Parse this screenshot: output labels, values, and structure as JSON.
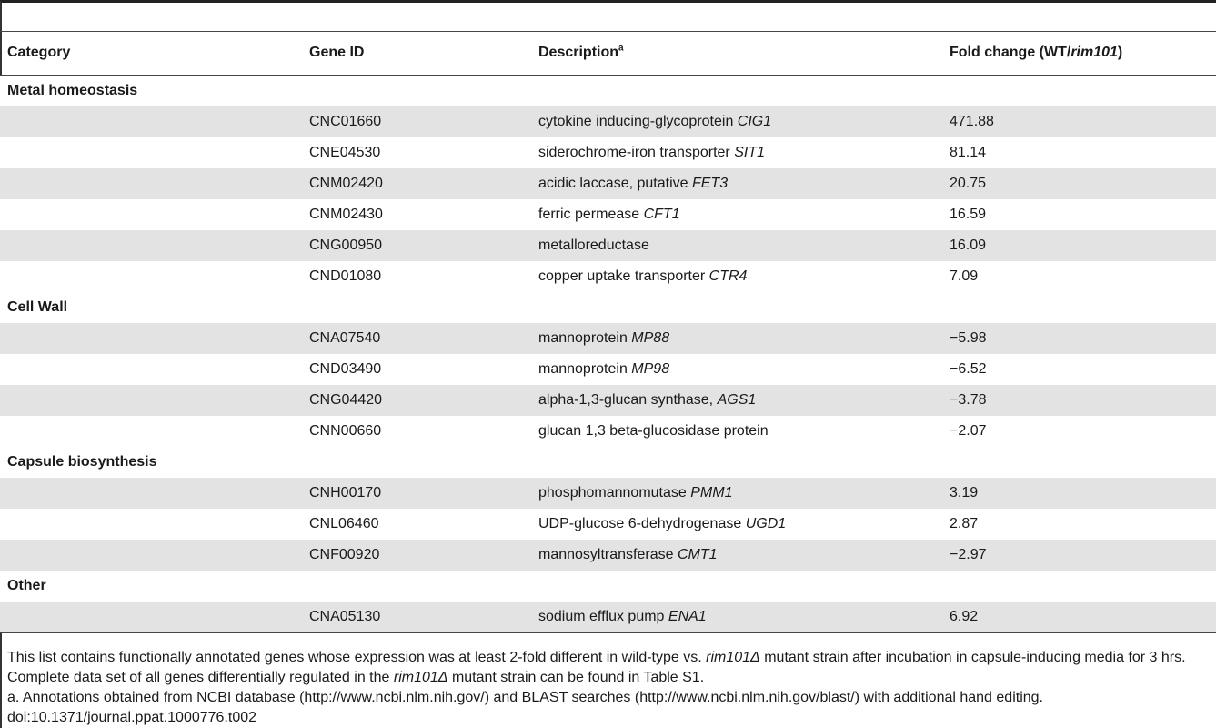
{
  "headers": {
    "category": "Category",
    "gene_id": "Gene ID",
    "description": "Description",
    "description_sup": "a",
    "fold_pre": "Fold change (WT/",
    "fold_italic": "rim101",
    "fold_post": ")"
  },
  "groups": [
    {
      "category": "Metal homeostasis",
      "rows": [
        {
          "gene": "CNC01660",
          "desc": "cytokine inducing-glycoprotein ",
          "desc_italic": "CIG1",
          "fold": "471.88"
        },
        {
          "gene": "CNE04530",
          "desc": "siderochrome-iron transporter ",
          "desc_italic": "SIT1",
          "fold": "81.14"
        },
        {
          "gene": "CNM02420",
          "desc": "acidic laccase, putative ",
          "desc_italic": "FET3",
          "fold": "20.75"
        },
        {
          "gene": "CNM02430",
          "desc": "ferric permease ",
          "desc_italic": "CFT1",
          "fold": "16.59"
        },
        {
          "gene": "CNG00950",
          "desc": "metalloreductase",
          "desc_italic": "",
          "fold": "16.09"
        },
        {
          "gene": "CND01080",
          "desc": "copper uptake transporter ",
          "desc_italic": "CTR4",
          "fold": "7.09"
        }
      ]
    },
    {
      "category": "Cell Wall",
      "rows": [
        {
          "gene": "CNA07540",
          "desc": "mannoprotein ",
          "desc_italic": "MP88",
          "fold": "−5.98"
        },
        {
          "gene": "CND03490",
          "desc": "mannoprotein ",
          "desc_italic": "MP98",
          "fold": "−6.52"
        },
        {
          "gene": "CNG04420",
          "desc": "alpha-1,3-glucan synthase, ",
          "desc_italic": "AGS1",
          "fold": "−3.78"
        },
        {
          "gene": "CNN00660",
          "desc": "glucan 1,3 beta-glucosidase protein",
          "desc_italic": "",
          "fold": "−2.07"
        }
      ]
    },
    {
      "category": "Capsule biosynthesis",
      "rows": [
        {
          "gene": "CNH00170",
          "desc": "phosphomannomutase ",
          "desc_italic": "PMM1",
          "fold": "3.19"
        },
        {
          "gene": "CNL06460",
          "desc": "UDP-glucose 6-dehydrogenase ",
          "desc_italic": "UGD1",
          "fold": "2.87"
        },
        {
          "gene": "CNF00920",
          "desc": "mannosyltransferase ",
          "desc_italic": "CMT1",
          "fold": "−2.97"
        }
      ]
    },
    {
      "category": "Other",
      "rows": [
        {
          "gene": "CNA05130",
          "desc": "sodium efflux pump ",
          "desc_italic": "ENA1",
          "fold": "6.92"
        }
      ]
    }
  ],
  "footer": {
    "p1_a": "This list contains functionally annotated genes whose expression was at least 2-fold different in wild-type vs. ",
    "p1_i1": "rim101Δ",
    "p1_b": " mutant strain after incubation in capsule-inducing media for 3 hrs. Complete data set of all genes differentially regulated in the ",
    "p1_i2": "rim101Δ",
    "p1_c": " mutant strain can be found in Table S1.",
    "p2": "a. Annotations obtained from NCBI database (http://www.ncbi.nlm.nih.gov/) and BLAST searches (http://www.ncbi.nlm.nih.gov/blast/) with additional hand editing.",
    "doi": "doi:10.1371/journal.ppat.1000776.t002"
  }
}
